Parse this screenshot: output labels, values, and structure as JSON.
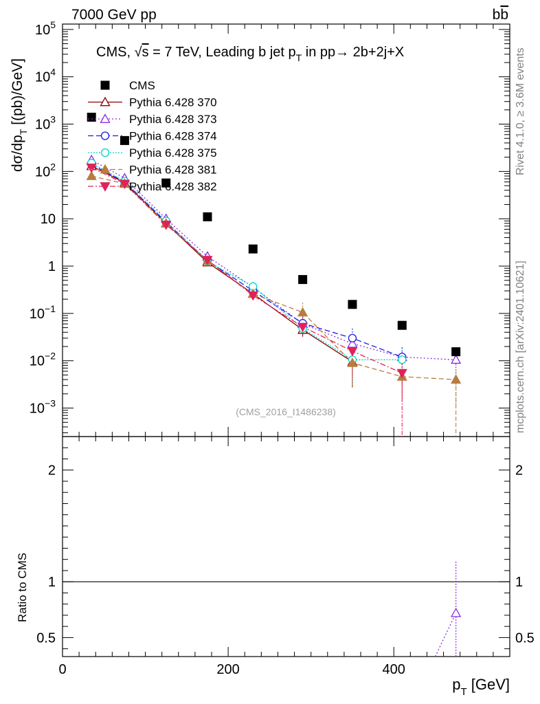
{
  "chart_data": {
    "type": "scatter",
    "top_left_label": "7000 GeV pp",
    "top_right_label": "bb̄",
    "title": "CMS, √s = 7 TeV, Leading b jet p_T in pp→ 2b+2j+X",
    "title_prefix": "CMS, ",
    "title_sqrt": "√",
    "title_s": "s",
    "title_rest": " = 7 TeV, Leading b jet p",
    "title_sub": "T",
    "title_tail": " in pp→  2b+2j+X",
    "ylabel": "dσ/dp_T [(pb)/GeV]",
    "ylabel_main": "dσ/dp",
    "ylabel_sub": "T",
    "ylabel_tail": " [(pb)/GeV]",
    "xlabel": "p_T [GeV]",
    "xlabel_main": "p",
    "xlabel_sub": "T",
    "xlabel_tail": " [GeV]",
    "ratio_ylabel": "Ratio to CMS",
    "watermark": "(CMS_2016_I1486238)",
    "side_text_top": "Rivet 4.1.0, ≥ 3.6M events",
    "side_text_bottom": "mcplots.cern.ch [arXiv:2401.10621]",
    "xlim": [
      0,
      540
    ],
    "ylim_log": [
      0.00025,
      130000
    ],
    "ratio_ylim": [
      0.33,
      2.3
    ],
    "x_ticks": [
      0,
      200,
      400
    ],
    "x_tick_labels": [
      "0",
      "200",
      "400"
    ],
    "y_ticks": [
      {
        "value": 0.001,
        "base": "10",
        "exp": "−3"
      },
      {
        "value": 0.01,
        "base": "10",
        "exp": "−2"
      },
      {
        "value": 0.1,
        "base": "10",
        "exp": "−1"
      },
      {
        "value": 1,
        "base": "1",
        "exp": ""
      },
      {
        "value": 10,
        "base": "10",
        "exp": ""
      },
      {
        "value": 100,
        "base": "10",
        "exp": "2"
      },
      {
        "value": 1000,
        "base": "10",
        "exp": "3"
      },
      {
        "value": 10000,
        "base": "10",
        "exp": "4"
      },
      {
        "value": 100000,
        "base": "10",
        "exp": "5"
      }
    ],
    "ratio_ticks": [
      {
        "value": 0.5,
        "label": "0.5"
      },
      {
        "value": 1,
        "label": "1"
      },
      {
        "value": 2,
        "label": "2"
      }
    ],
    "x": [
      35,
      75,
      125,
      175,
      230,
      290,
      350,
      410,
      475
    ],
    "data": {
      "name": "CMS",
      "values": [
        1400,
        450,
        57,
        11,
        2.3,
        0.52,
        0.155,
        0.056,
        0.0155
      ]
    },
    "series": [
      {
        "name": "Pythia 6.428 370",
        "color": "#8b0000",
        "dash": "",
        "marker": "tri-up-open",
        "values": [
          130,
          58,
          8,
          1.2,
          0.26,
          0.045,
          0.0095,
          null,
          null
        ]
      },
      {
        "name": "Pythia 6.428 373",
        "color": "#8a2be2",
        "dash": "2,3",
        "marker": "tri-up-open",
        "values": [
          175,
          72,
          10,
          1.6,
          0.36,
          0.06,
          0.023,
          0.012,
          0.0105
        ]
      },
      {
        "name": "Pythia 6.428 374",
        "color": "#1a1ae6",
        "dash": "8,4",
        "marker": "circle-open",
        "values": [
          140,
          60,
          8.5,
          1.3,
          0.3,
          0.062,
          0.03,
          0.012,
          null
        ]
      },
      {
        "name": "Pythia 6.428 375",
        "color": "#00d5c5",
        "dash": "2,2",
        "marker": "circle-open",
        "values": [
          150,
          62,
          9,
          1.25,
          0.37,
          0.048,
          0.0105,
          0.0105,
          null
        ]
      },
      {
        "name": "Pythia 6.428 381",
        "color": "#b87c40",
        "dash": "7,4",
        "marker": "tri-up-filled",
        "values": [
          80,
          55,
          8,
          1.3,
          0.26,
          0.105,
          0.009,
          0.0046,
          0.004
        ]
      },
      {
        "name": "Pythia 6.428 382",
        "color": "#e0225a",
        "dash": "8,3,2,3",
        "marker": "tri-down-filled",
        "values": [
          120,
          55,
          7.5,
          1.35,
          0.24,
          0.052,
          0.016,
          0.0055,
          null
        ]
      }
    ],
    "ratio_series": {
      "name": "Pythia 6.428 373",
      "x": [
        450,
        475
      ],
      "values": [
        0.33,
        0.72
      ],
      "err_up": 1.18,
      "err_down": 0.33
    }
  }
}
